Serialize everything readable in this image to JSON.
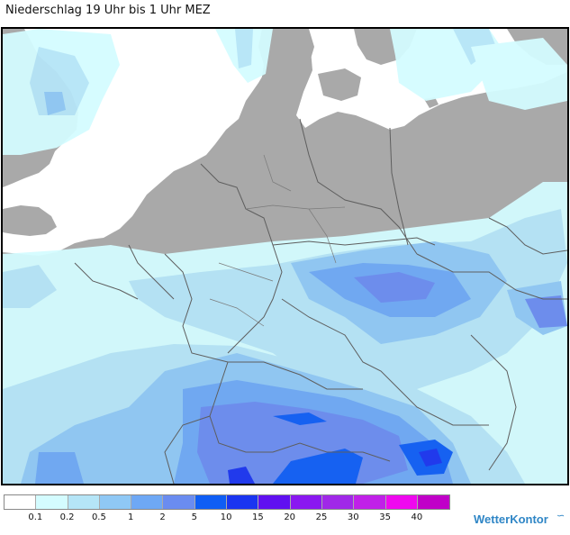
{
  "title": "Niederschlag 19 Uhr bis 1 Uhr MEZ",
  "legend": {
    "colors": [
      "#ffffff",
      "#d4fcff",
      "#b5e5f7",
      "#8fc8f5",
      "#6ea8f5",
      "#6a8cf0",
      "#0f5ef5",
      "#1a35f0",
      "#6010f0",
      "#8a18f0",
      "#a028e8",
      "#c020e8",
      "#ef08ef",
      "#c000c8"
    ],
    "labels": [
      "0.1",
      "0.2",
      "0.5",
      "1",
      "2",
      "5",
      "10",
      "15",
      "20",
      "25",
      "30",
      "35",
      "40"
    ]
  },
  "brand": "WetterKontor",
  "colors": {
    "land": "#a9a9a9",
    "sea": "#ffffff",
    "border": "#5e5e5e"
  }
}
